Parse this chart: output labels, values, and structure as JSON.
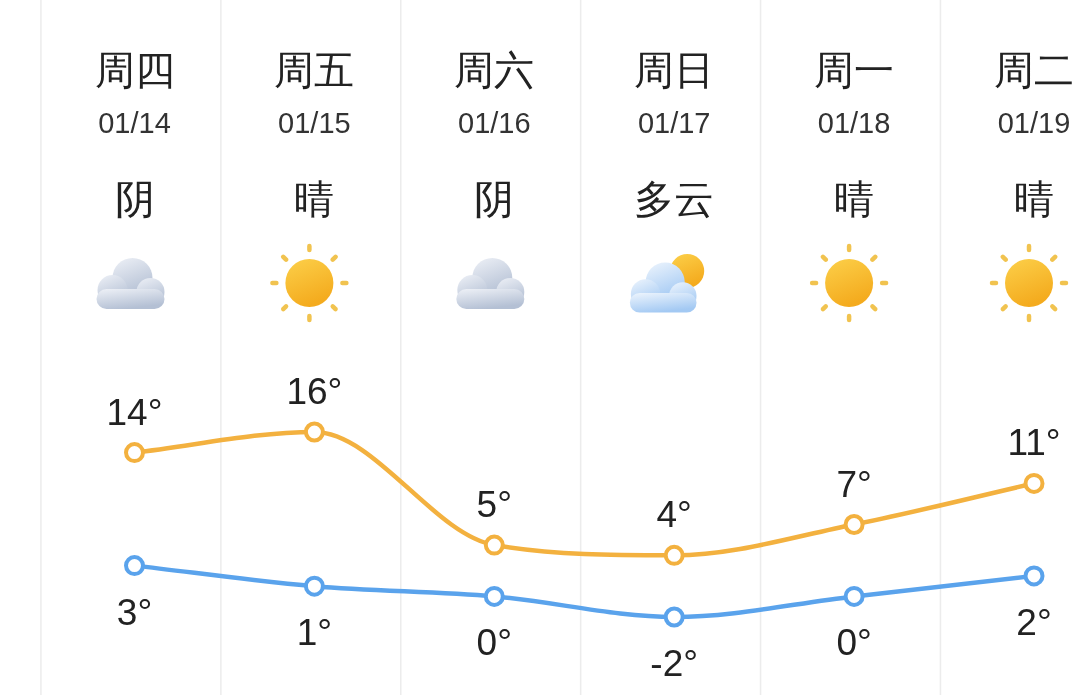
{
  "chart_data": {
    "type": "line",
    "categories": [
      "周四\n01/14\n阴",
      "周五\n01/15\n晴",
      "周六\n01/16\n阴",
      "周日\n01/17\n多云",
      "周一\n01/18\n晴",
      "周二\n01/19\n晴"
    ],
    "series": [
      {
        "color": "#f3b13f",
        "values": [
          14,
          16,
          5,
          4,
          7,
          11
        ],
        "value_labels": [
          "14°",
          "16°",
          "5°",
          "4°",
          "7°",
          "11°"
        ]
      },
      {
        "color": "#5aa3ec",
        "values": [
          3,
          1,
          0,
          -2,
          0,
          2
        ],
        "value_labels": [
          "3°",
          "1°",
          "0°",
          "-2°",
          "0°",
          "2°"
        ]
      }
    ],
    "marker": "circle",
    "line_style": "solid",
    "grid": "x"
  }
}
